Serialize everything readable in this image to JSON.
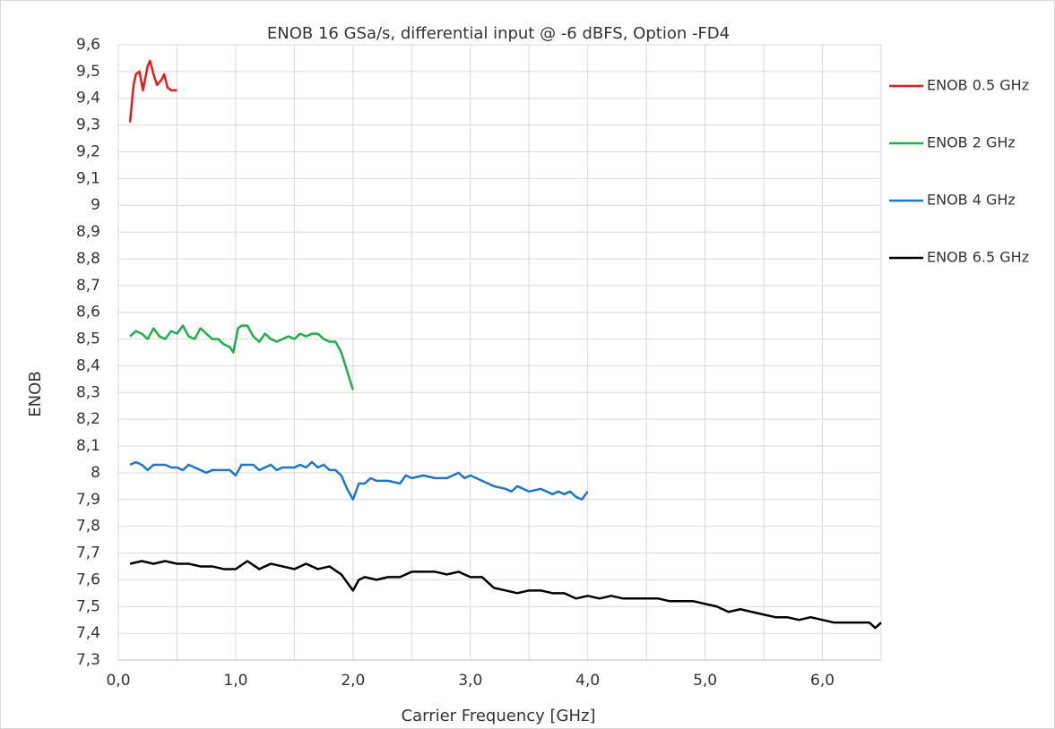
{
  "chart_data": {
    "type": "line",
    "title": "ENOB 16 GSa/s, differential input @ -6 dBFS, Option -FD4",
    "x_label": "Carrier Frequency [GHz]",
    "y_label": "ENOB",
    "xlim": [
      0,
      6.5
    ],
    "xticks": [
      {
        "value": 0,
        "label": "0,0"
      },
      {
        "value": 1,
        "label": "1,0"
      },
      {
        "value": 2,
        "label": "2,0"
      },
      {
        "value": 3,
        "label": "3,0"
      },
      {
        "value": 4,
        "label": "4,0"
      },
      {
        "value": 5,
        "label": "5,0"
      },
      {
        "value": 6,
        "label": "6,0"
      }
    ],
    "x_minor_grid": [
      0.5,
      1.5,
      2.5,
      3.5,
      4.5,
      5.5,
      6.5
    ],
    "ylim": [
      7.3,
      9.6
    ],
    "yticks": [
      {
        "value": 7.3,
        "label": "7,3"
      },
      {
        "value": 7.4,
        "label": "7,4"
      },
      {
        "value": 7.5,
        "label": "7,5"
      },
      {
        "value": 7.6,
        "label": "7,6"
      },
      {
        "value": 7.7,
        "label": "7,7"
      },
      {
        "value": 7.8,
        "label": "7,8"
      },
      {
        "value": 7.9,
        "label": "7,9"
      },
      8,
      {
        "value": 8.1,
        "label": "8,1"
      },
      {
        "value": 8.2,
        "label": "8,2"
      },
      {
        "value": 8.3,
        "label": "8,3"
      },
      {
        "value": 8.4,
        "label": "8,4"
      },
      {
        "value": 8.5,
        "label": "8,5"
      },
      {
        "value": 8.6,
        "label": "8,6"
      },
      {
        "value": 8.7,
        "label": "8,7"
      },
      {
        "value": 8.8,
        "label": "8,8"
      },
      {
        "value": 8.9,
        "label": "8,9"
      },
      9,
      {
        "value": 9.1,
        "label": "9,1"
      },
      {
        "value": 9.2,
        "label": "9,2"
      },
      {
        "value": 9.3,
        "label": "9,3"
      },
      {
        "value": 9.4,
        "label": "9,4"
      },
      {
        "value": 9.5,
        "label": "9,5"
      },
      {
        "value": 9.6,
        "label": "9,6"
      }
    ],
    "grid": true,
    "legend": "right",
    "series": [
      {
        "name": "ENOB 0.5 GHz",
        "color": "#e8191c",
        "x": [
          0.1,
          0.13,
          0.15,
          0.18,
          0.21,
          0.25,
          0.27,
          0.3,
          0.33,
          0.37,
          0.39,
          0.42,
          0.45,
          0.5
        ],
        "values": [
          9.31,
          9.45,
          9.49,
          9.5,
          9.43,
          9.52,
          9.54,
          9.49,
          9.45,
          9.47,
          9.49,
          9.44,
          9.43,
          9.43
        ]
      },
      {
        "name": "ENOB 2 GHz",
        "color": "#1fae4b",
        "x": [
          0.1,
          0.15,
          0.2,
          0.25,
          0.3,
          0.35,
          0.4,
          0.45,
          0.5,
          0.55,
          0.6,
          0.65,
          0.7,
          0.75,
          0.8,
          0.85,
          0.9,
          0.95,
          0.98,
          1.02,
          1.05,
          1.1,
          1.15,
          1.2,
          1.25,
          1.3,
          1.35,
          1.4,
          1.45,
          1.5,
          1.55,
          1.6,
          1.65,
          1.7,
          1.75,
          1.8,
          1.85,
          1.9,
          1.95,
          2.0
        ],
        "values": [
          8.51,
          8.53,
          8.52,
          8.5,
          8.54,
          8.51,
          8.5,
          8.53,
          8.52,
          8.55,
          8.51,
          8.5,
          8.54,
          8.52,
          8.5,
          8.5,
          8.48,
          8.47,
          8.45,
          8.54,
          8.55,
          8.55,
          8.51,
          8.49,
          8.52,
          8.5,
          8.49,
          8.5,
          8.51,
          8.5,
          8.52,
          8.51,
          8.52,
          8.52,
          8.5,
          8.49,
          8.49,
          8.45,
          8.38,
          8.31
        ]
      },
      {
        "name": "ENOB 4 GHz",
        "color": "#1f77c4",
        "x": [
          0.1,
          0.15,
          0.2,
          0.25,
          0.3,
          0.4,
          0.45,
          0.5,
          0.55,
          0.6,
          0.7,
          0.75,
          0.8,
          0.9,
          0.95,
          1.0,
          1.05,
          1.1,
          1.15,
          1.2,
          1.3,
          1.35,
          1.4,
          1.5,
          1.55,
          1.6,
          1.65,
          1.7,
          1.75,
          1.8,
          1.85,
          1.9,
          1.95,
          2.0,
          2.05,
          2.1,
          2.15,
          2.2,
          2.3,
          2.4,
          2.45,
          2.5,
          2.6,
          2.7,
          2.8,
          2.9,
          2.95,
          3.0,
          3.1,
          3.2,
          3.3,
          3.35,
          3.4,
          3.5,
          3.6,
          3.7,
          3.75,
          3.8,
          3.85,
          3.9,
          3.95,
          4.0
        ],
        "values": [
          8.03,
          8.04,
          8.03,
          8.01,
          8.03,
          8.03,
          8.02,
          8.02,
          8.01,
          8.03,
          8.01,
          8.0,
          8.01,
          8.01,
          8.01,
          7.99,
          8.03,
          8.03,
          8.03,
          8.01,
          8.03,
          8.01,
          8.02,
          8.02,
          8.03,
          8.02,
          8.04,
          8.02,
          8.03,
          8.01,
          8.01,
          7.99,
          7.94,
          7.9,
          7.96,
          7.96,
          7.98,
          7.97,
          7.97,
          7.96,
          7.99,
          7.98,
          7.99,
          7.98,
          7.98,
          8.0,
          7.98,
          7.99,
          7.97,
          7.95,
          7.94,
          7.93,
          7.95,
          7.93,
          7.94,
          7.92,
          7.93,
          7.92,
          7.93,
          7.91,
          7.9,
          7.93
        ]
      },
      {
        "name": "ENOB 6.5 GHz",
        "color": "#000000",
        "x": [
          0.1,
          0.2,
          0.3,
          0.4,
          0.5,
          0.6,
          0.7,
          0.8,
          0.9,
          1.0,
          1.1,
          1.2,
          1.3,
          1.4,
          1.5,
          1.6,
          1.7,
          1.8,
          1.9,
          2.0,
          2.05,
          2.1,
          2.2,
          2.3,
          2.4,
          2.5,
          2.6,
          2.7,
          2.8,
          2.9,
          3.0,
          3.1,
          3.2,
          3.3,
          3.4,
          3.5,
          3.6,
          3.7,
          3.8,
          3.9,
          4.0,
          4.1,
          4.2,
          4.3,
          4.4,
          4.5,
          4.6,
          4.7,
          4.8,
          4.9,
          5.0,
          5.1,
          5.2,
          5.3,
          5.4,
          5.5,
          5.6,
          5.7,
          5.8,
          5.9,
          6.0,
          6.1,
          6.2,
          6.3,
          6.4,
          6.45,
          6.5
        ],
        "values": [
          7.66,
          7.67,
          7.66,
          7.67,
          7.66,
          7.66,
          7.65,
          7.65,
          7.64,
          7.64,
          7.67,
          7.64,
          7.66,
          7.65,
          7.64,
          7.66,
          7.64,
          7.65,
          7.62,
          7.56,
          7.6,
          7.61,
          7.6,
          7.61,
          7.61,
          7.63,
          7.63,
          7.63,
          7.62,
          7.63,
          7.61,
          7.61,
          7.57,
          7.56,
          7.55,
          7.56,
          7.56,
          7.55,
          7.55,
          7.53,
          7.54,
          7.53,
          7.54,
          7.53,
          7.53,
          7.53,
          7.53,
          7.52,
          7.52,
          7.52,
          7.51,
          7.5,
          7.48,
          7.49,
          7.48,
          7.47,
          7.46,
          7.46,
          7.45,
          7.46,
          7.45,
          7.44,
          7.44,
          7.44,
          7.44,
          7.42,
          7.44
        ]
      }
    ]
  }
}
